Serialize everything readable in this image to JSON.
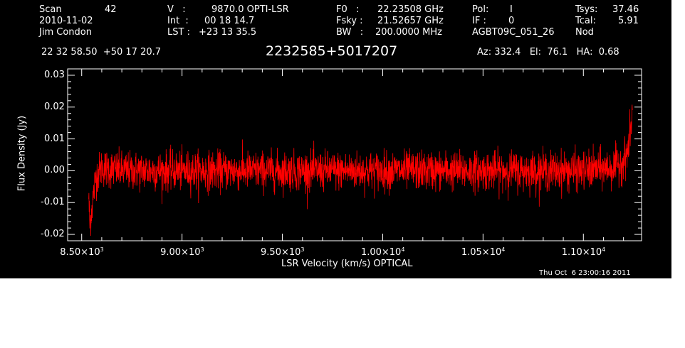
{
  "header": {
    "scan_label": "Scan",
    "scan_value": "42",
    "date": "2010-11-02",
    "observer": "Jim Condon",
    "ra_dec": "22 32 58.50  +50 17 20.7",
    "v_label": "V   :",
    "v_value": "9870.0 OPTI-LSR",
    "int_label": "Int  :",
    "int_value": "00 18 14.7",
    "lst_label": "LST : ",
    "lst_value": "+23 13 35.5",
    "f0_label": "F0   :",
    "f0_value": "22.23508 GHz",
    "fsky_label": "Fsky :",
    "fsky_value": "21.52657 GHz",
    "bw_label": "BW   :",
    "bw_value": "200.0000 MHz",
    "pol_label": "Pol:",
    "pol_value": "I",
    "if_label": "IF :",
    "if_value": "0",
    "project": "AGBT09C_051_26",
    "tsys_label": "Tsys:",
    "tsys_value": "37.46",
    "tcal_label": "Tcal:",
    "tcal_value": "5.91",
    "mode": "Nod",
    "source": "2232585+5017207",
    "az_el_ha": "Az: 332.4   El:  76.1   HA:  0.68",
    "timestamp": "Thu Oct  6 23:00:16 2011"
  },
  "chart_data": {
    "type": "line",
    "xlabel": "LSR Velocity (km/s) OPTICAL",
    "ylabel": "Flux Density (Jy)",
    "xlim": [
      8430,
      11290
    ],
    "ylim": [
      -0.022,
      0.032
    ],
    "x_ticks": [
      8500,
      9000,
      9500,
      10000,
      10500,
      11000
    ],
    "x_tick_labels": [
      {
        "mant": "8.50",
        "exp": "3"
      },
      {
        "mant": "9.00",
        "exp": "3"
      },
      {
        "mant": "9.50",
        "exp": "3"
      },
      {
        "mant": "1.00",
        "exp": "4"
      },
      {
        "mant": "1.05",
        "exp": "4"
      },
      {
        "mant": "1.10",
        "exp": "4"
      }
    ],
    "y_ticks": [
      -0.02,
      -0.01,
      0.0,
      0.01,
      0.02,
      0.03
    ],
    "y_tick_labels": [
      "-0.02",
      "-0.01",
      "0.00",
      "0.01",
      "0.02",
      "0.03"
    ],
    "series": [
      {
        "line_color": "#ff0000",
        "noise_sigma_jy": 0.003,
        "points": [
          [
            8535,
            -0.008
          ],
          [
            8540,
            -0.017
          ],
          [
            8550,
            -0.012
          ],
          [
            8570,
            -0.002
          ],
          [
            8600,
            0.001
          ],
          [
            8700,
            0.0
          ],
          [
            8800,
            0.0
          ],
          [
            9000,
            0.0
          ],
          [
            9500,
            0.0
          ],
          [
            10000,
            0.0
          ],
          [
            10500,
            0.0
          ],
          [
            11000,
            0.0
          ],
          [
            11150,
            0.001
          ],
          [
            11200,
            0.003
          ],
          [
            11220,
            0.006
          ],
          [
            11235,
            0.012
          ],
          [
            11245,
            0.02
          ]
        ]
      }
    ]
  }
}
